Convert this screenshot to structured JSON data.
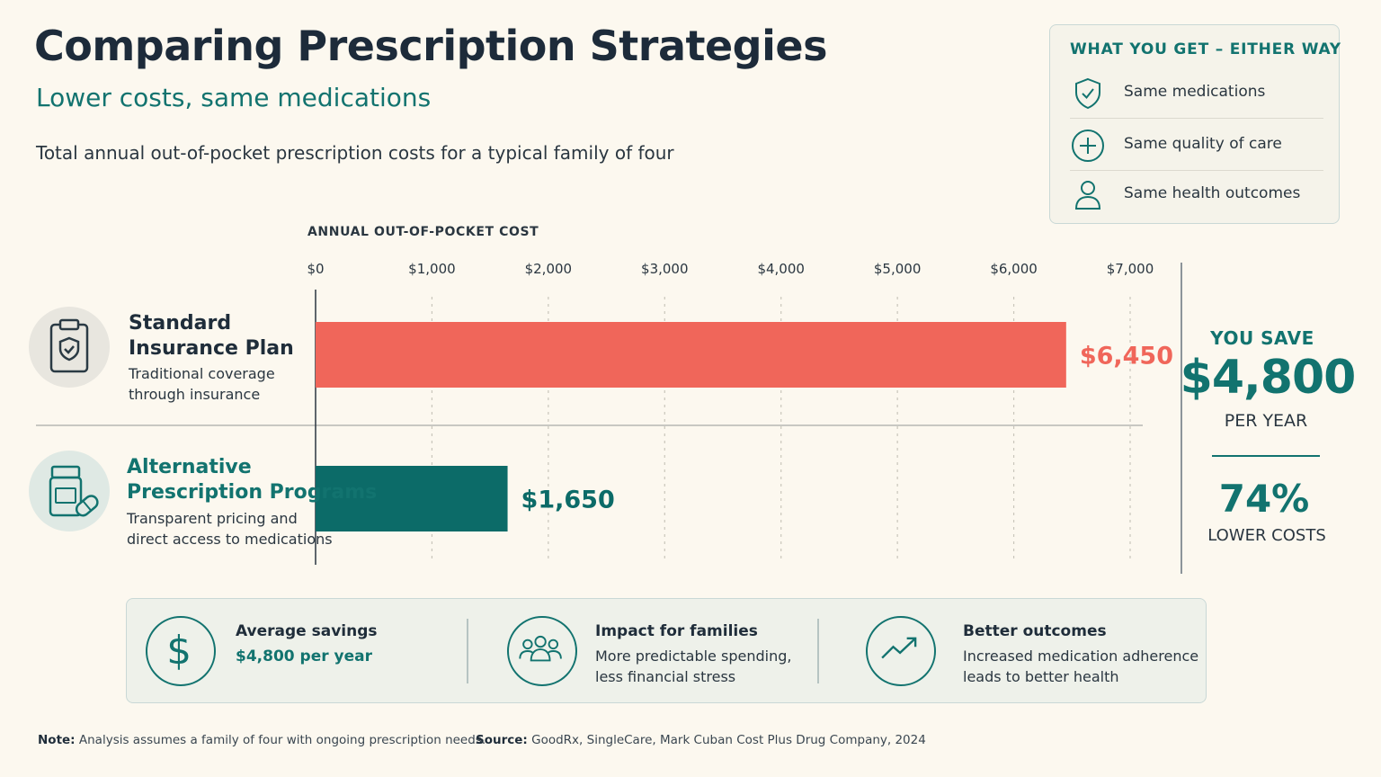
{
  "header": {
    "title": "Comparing Prescription Strategies",
    "subtitle": "Lower costs, same medications",
    "description": "Total annual out-of-pocket prescription costs for a typical family of four"
  },
  "what_you_get": {
    "title": "WHAT YOU GET – EITHER WAY",
    "items": [
      {
        "label": "Same medications",
        "icon": "shield-check-icon"
      },
      {
        "label": "Same quality of care",
        "icon": "plus-circle-icon"
      },
      {
        "label": "Same health outcomes",
        "icon": "person-icon"
      }
    ]
  },
  "categories": [
    {
      "title_line1": "Standard",
      "title_line2": "Insurance Plan",
      "desc_line1": "Traditional coverage",
      "desc_line2": "through insurance",
      "icon": "clipboard-shield-icon"
    },
    {
      "title_line1": "Alternative",
      "title_line2": "Prescription Programs",
      "desc_line1": "Transparent pricing and",
      "desc_line2": "direct access to medications",
      "icon": "pill-bottle-icon"
    }
  ],
  "chart_data": {
    "type": "bar",
    "orientation": "horizontal",
    "xlabel": "ANNUAL OUT-OF-POCKET COST",
    "xlim": [
      0,
      7000
    ],
    "x_ticks": [
      "$0",
      "$1,000",
      "$2,000",
      "$3,000",
      "$4,000",
      "$5,000",
      "$6,000",
      "$7,000"
    ],
    "grid": true,
    "categories": [
      "Standard Insurance Plan",
      "Alternative Prescription Programs"
    ],
    "values": [
      6450,
      1650
    ],
    "value_labels": [
      "$6,450",
      "$1,650"
    ],
    "colors": [
      "#f0665a",
      "#0c6b68"
    ]
  },
  "savings": {
    "you_save": "YOU SAVE",
    "amount": "$4,800",
    "per_year": "PER YEAR",
    "percent": "74%",
    "lower_costs": "LOWER COSTS"
  },
  "info_strip": [
    {
      "heading": "Average savings",
      "line1": "$4,800 per year",
      "line2": "",
      "icon": "dollar-icon"
    },
    {
      "heading": "Impact for families",
      "line1": "More predictable spending,",
      "line2": "less financial stress",
      "icon": "family-icon"
    },
    {
      "heading": "Better outcomes",
      "line1": "Increased medication adherence",
      "line2": "leads to better health",
      "icon": "trend-up-icon"
    }
  ],
  "footer": {
    "note_label": "Note:",
    "note_text": "Analysis assumes a family of four with ongoing prescription needs.",
    "source_label": "Source:",
    "source_text": "GoodRx, SingleCare, Mark Cuban Cost Plus Drug Company, 2024"
  },
  "colors": {
    "accent": "#12736f",
    "standard_bar": "#f0665a",
    "alternative_bar": "#0c6b68",
    "background": "#fcf8ef"
  }
}
